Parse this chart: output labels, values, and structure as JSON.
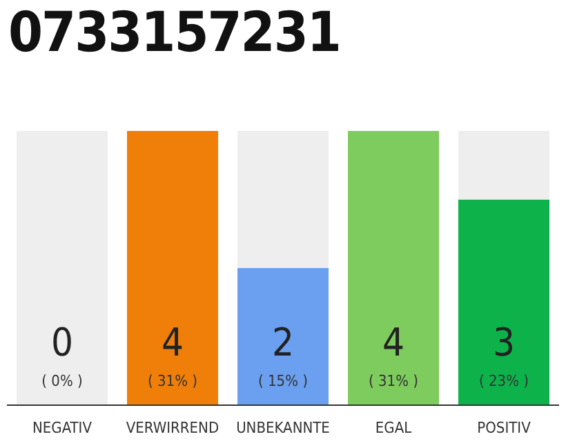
{
  "chart_data": {
    "type": "bar",
    "title": "0733157231",
    "categories": [
      "NEGATIV",
      "VERWIRREND",
      "UNBEKANNTE",
      "EGAL",
      "POSITIV"
    ],
    "stacked": true,
    "series": [
      {
        "colors": [
          "#d0d0d0",
          "#f07f0a",
          "#6aa0ef",
          "#7dcc5d",
          "#0db34a"
        ],
        "values": [
          0,
          4,
          2,
          4,
          3
        ],
        "value_labels": [
          null,
          "4",
          "2",
          "4",
          "3"
        ]
      },
      {
        "color": "#eeeeee",
        "values": [
          4,
          0,
          2,
          0,
          1
        ]
      }
    ],
    "annotations": [
      {
        "text": "0",
        "x": "NEGATIV",
        "y": 0
      },
      "( 0% )",
      "( 31% )",
      "( 15% )",
      "( 31% )",
      "( 23% )"
    ]
  }
}
